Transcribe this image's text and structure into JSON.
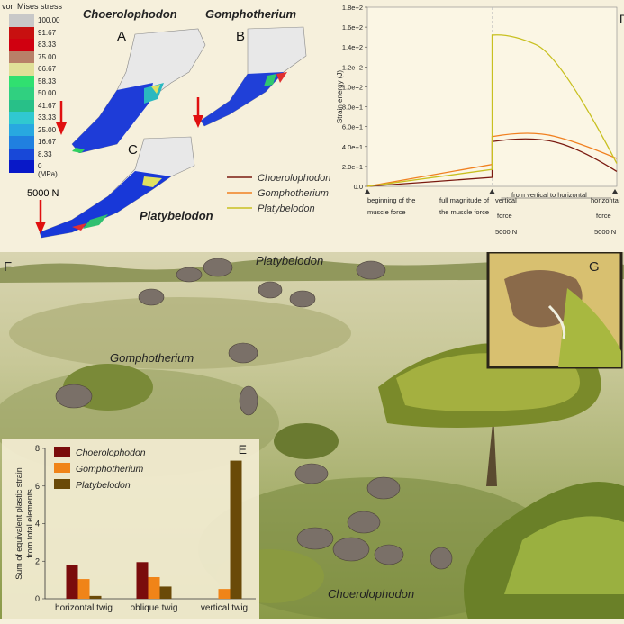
{
  "legend": {
    "title": "von Mises stress",
    "items": [
      {
        "label": "100.00",
        "color": "#c8c8c8"
      },
      {
        "label": "91.67",
        "color": "#c81010"
      },
      {
        "label": "83.33",
        "color": "#d00010"
      },
      {
        "label": "75.00",
        "color": "#b88068"
      },
      {
        "label": "66.67",
        "color": "#e0e098"
      },
      {
        "label": "58.33",
        "color": "#30e070"
      },
      {
        "label": "50.00",
        "color": "#30d080"
      },
      {
        "label": "41.67",
        "color": "#28c088"
      },
      {
        "label": "33.33",
        "color": "#30c8d0"
      },
      {
        "label": "25.00",
        "color": "#28a8e0"
      },
      {
        "label": "16.67",
        "color": "#2080e0"
      },
      {
        "label": "8.33",
        "color": "#1848d8"
      },
      {
        "label": "0 (MPa)",
        "color": "#0818c8"
      }
    ]
  },
  "panels": {
    "A": "A",
    "B": "B",
    "C": "C",
    "D": "D",
    "E": "E",
    "F": "F",
    "G": "G",
    "title_A": "Choerolophodon",
    "title_B": "Gomphotherium",
    "title_C": "Platybelodon",
    "force_label": "5000 N"
  },
  "chart_data": [
    {
      "type": "line",
      "ylabel": "Strain energy (J)",
      "ylim": [
        0,
        180
      ],
      "y_ticks": [
        "0.0",
        "2.0e+1",
        "4.0e+1",
        "6.0e+1",
        "8.0e+1",
        "1.0e+2",
        "1.2e+2",
        "1.4e+2",
        "1.6e+2",
        "1.8e+2"
      ],
      "x_annotations": {
        "start": "beginning of the\nmuscle force",
        "full_1": "full magnitude of",
        "full_2": "the muscle force",
        "vertical_1": "vertical",
        "vertical_2": "force",
        "range_label": "from vertical to horizontal",
        "horizontal_1": "horizontal",
        "horizontal_2": "force",
        "n1": "5000 N",
        "n2": "5000 N",
        "begin_1": "beginning of the",
        "begin_2": "muscle force"
      },
      "series": [
        {
          "name": "Choerolophodon",
          "color": "#7a1a10",
          "points": [
            [
              0,
              0
            ],
            [
              1,
              9
            ],
            [
              1.0,
              45
            ],
            [
              1.3,
              47
            ],
            [
              2,
              15
            ]
          ]
        },
        {
          "name": "Gomphotherium",
          "color": "#f08020",
          "points": [
            [
              0,
              0
            ],
            [
              1,
              22
            ],
            [
              1.0,
              50
            ],
            [
              1.3,
              53
            ],
            [
              2,
              28
            ]
          ]
        },
        {
          "name": "Platybelodon",
          "color": "#c8c020",
          "points": [
            [
              0,
              0
            ],
            [
              1,
              17
            ],
            [
              1.0,
              152
            ],
            [
              1.15,
              150
            ],
            [
              2,
              23
            ]
          ]
        }
      ]
    },
    {
      "type": "bar",
      "ylabel_1": "Sum of equivalent plastic strain",
      "ylabel_2": "from total elements",
      "ylim": [
        0,
        8
      ],
      "y_ticks": [
        "0",
        "2",
        "4",
        "6",
        "8"
      ],
      "categories": [
        "horizontal twig",
        "oblique twig",
        "vertical twig"
      ],
      "series": [
        {
          "name": "Choerolophodon",
          "color": "#7a0c0c",
          "values": [
            1.8,
            1.95,
            0.0
          ]
        },
        {
          "name": "Gomphotherium",
          "color": "#f08418",
          "values": [
            1.05,
            1.15,
            0.52
          ]
        },
        {
          "name": "Platybelodon",
          "color": "#6a4a08",
          "values": [
            0.15,
            0.65,
            7.35
          ]
        }
      ]
    }
  ],
  "scene": {
    "label_platy": "Platybelodon",
    "label_gompho": "Gomphotherium",
    "label_choero": "Choerolophodon"
  }
}
